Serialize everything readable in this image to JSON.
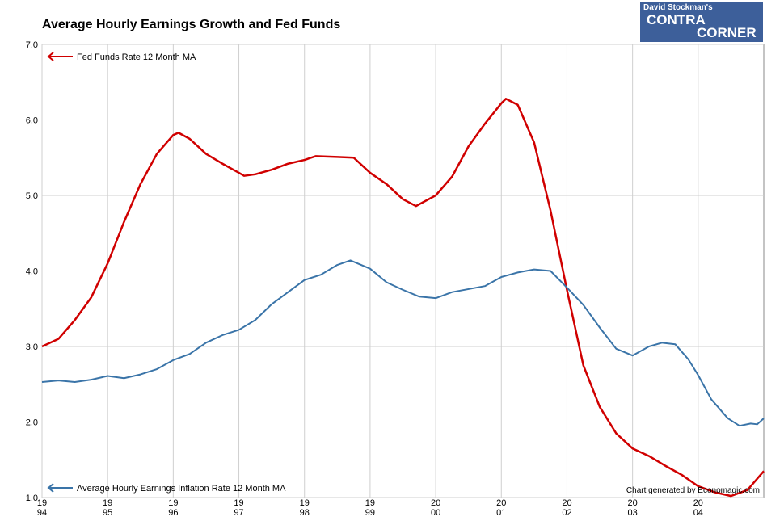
{
  "chart_data": {
    "type": "line",
    "title": "Average Hourly Earnings Growth and Fed Funds",
    "logo_text": [
      "David Stockman's",
      "CONTRA",
      "CORNER"
    ],
    "credit": "Chart generated by Economagic.com",
    "xlim": [
      1994,
      2005
    ],
    "xticks": [
      {
        "value": 1994,
        "label": [
          "19",
          "94"
        ]
      },
      {
        "value": 1995,
        "label": [
          "19",
          "95"
        ]
      },
      {
        "value": 1996,
        "label": [
          "19",
          "96"
        ]
      },
      {
        "value": 1997,
        "label": [
          "19",
          "97"
        ]
      },
      {
        "value": 1998,
        "label": [
          "19",
          "98"
        ]
      },
      {
        "value": 1999,
        "label": [
          "19",
          "99"
        ]
      },
      {
        "value": 2000,
        "label": [
          "20",
          "00"
        ]
      },
      {
        "value": 2001,
        "label": [
          "20",
          "01"
        ]
      },
      {
        "value": 2002,
        "label": [
          "20",
          "02"
        ]
      },
      {
        "value": 2003,
        "label": [
          "20",
          "03"
        ]
      },
      {
        "value": 2004,
        "label": [
          "20",
          "04"
        ]
      }
    ],
    "ylim": [
      1,
      7
    ],
    "yticks": [
      {
        "value": 1,
        "label": "1.0"
      },
      {
        "value": 2,
        "label": "2.0"
      },
      {
        "value": 3,
        "label": "3.0"
      },
      {
        "value": 4,
        "label": "4.0"
      },
      {
        "value": 5,
        "label": "5.0"
      },
      {
        "value": 6,
        "label": "6.0"
      },
      {
        "value": 7,
        "label": "7.0"
      }
    ],
    "grid": true,
    "series": [
      {
        "name": "Fed Funds Rate 12 Month MA",
        "color": "#d00000",
        "x": [
          1994,
          1994.25,
          1994.5,
          1994.75,
          1995,
          1995.25,
          1995.5,
          1995.75,
          1996,
          1996.08,
          1996.25,
          1996.5,
          1996.75,
          1997,
          1997.08,
          1997.25,
          1997.5,
          1997.75,
          1998,
          1998.17,
          1998.5,
          1998.75,
          1999,
          1999.25,
          1999.5,
          1999.7,
          2000,
          2000.25,
          2000.5,
          2000.75,
          2001,
          2001.07,
          2001.25,
          2001.5,
          2001.75,
          2002,
          2002.25,
          2002.5,
          2002.75,
          2003,
          2003.25,
          2003.5,
          2003.75,
          2004,
          2004.25,
          2004.5,
          2004.75,
          2005
        ],
        "values": [
          3.0,
          3.1,
          3.35,
          3.65,
          4.1,
          4.65,
          5.15,
          5.55,
          5.8,
          5.83,
          5.75,
          5.55,
          5.42,
          5.3,
          5.26,
          5.28,
          5.34,
          5.42,
          5.47,
          5.52,
          5.51,
          5.5,
          5.3,
          5.15,
          4.95,
          4.86,
          5.0,
          5.25,
          5.65,
          5.95,
          6.22,
          6.28,
          6.2,
          5.7,
          4.8,
          3.75,
          2.75,
          2.2,
          1.85,
          1.65,
          1.55,
          1.42,
          1.3,
          1.15,
          1.07,
          1.02,
          1.1,
          1.35
        ]
      },
      {
        "name": "Average Hourly Earnings Inflation Rate 12 Month MA",
        "color": "#3a74a8",
        "x": [
          1994,
          1994.25,
          1994.5,
          1994.75,
          1995,
          1995.25,
          1995.5,
          1995.75,
          1996,
          1996.25,
          1996.5,
          1996.75,
          1997,
          1997.25,
          1997.5,
          1997.75,
          1998,
          1998.25,
          1998.5,
          1998.7,
          1999,
          1999.25,
          1999.5,
          1999.75,
          2000,
          2000.25,
          2000.5,
          2000.75,
          2001,
          2001.25,
          2001.5,
          2001.75,
          2002,
          2002.25,
          2002.5,
          2002.75,
          2003,
          2003.25,
          2003.45,
          2003.65,
          2003.85,
          2004,
          2004.2,
          2004.45,
          2004.63,
          2004.8,
          2004.9,
          2005
        ],
        "values": [
          2.53,
          2.55,
          2.53,
          2.56,
          2.61,
          2.58,
          2.63,
          2.7,
          2.82,
          2.9,
          3.05,
          3.15,
          3.22,
          3.35,
          3.56,
          3.72,
          3.88,
          3.95,
          4.08,
          4.14,
          4.03,
          3.85,
          3.75,
          3.66,
          3.64,
          3.72,
          3.76,
          3.8,
          3.92,
          3.98,
          4.02,
          4.0,
          3.78,
          3.55,
          3.25,
          2.97,
          2.88,
          3.0,
          3.05,
          3.03,
          2.83,
          2.62,
          2.3,
          2.05,
          1.95,
          1.98,
          1.97,
          2.05
        ]
      }
    ]
  }
}
